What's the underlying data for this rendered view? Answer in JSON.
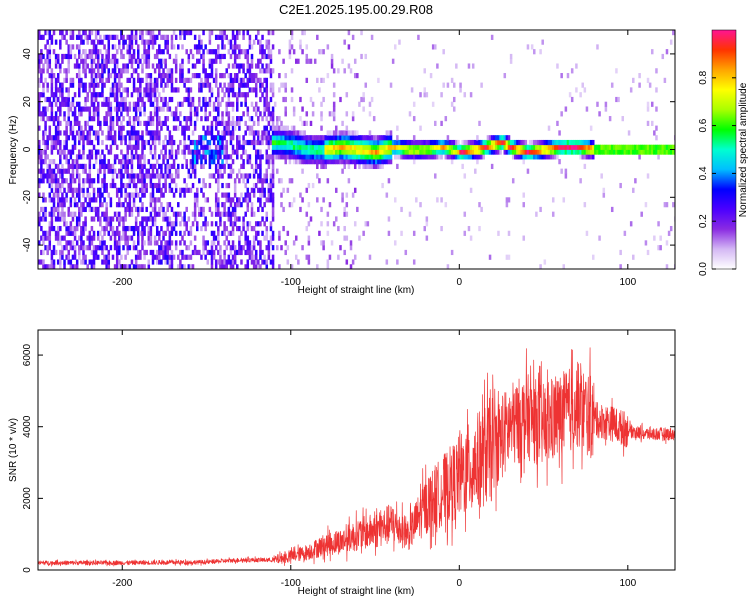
{
  "figure_title": "C2E1.2025.195.00.29.R08",
  "chart_data": [
    {
      "type": "heatmap",
      "xlabel": "Height of straight line (km)",
      "ylabel": "Frequency (Hz)",
      "xlim": [
        -250,
        128
      ],
      "ylim": [
        -50,
        50
      ],
      "xticks": [
        -200,
        -100,
        0,
        100
      ],
      "yticks": [
        -40,
        -20,
        0,
        20,
        40
      ],
      "colorbar": {
        "label": "Normalized spectral amplitude",
        "range": [
          0,
          1
        ],
        "ticks": [
          0.0,
          0.2,
          0.4,
          0.6,
          0.8
        ],
        "tick_labels": [
          "0.0",
          "0.2",
          "0.4",
          "0.6",
          "0.8"
        ],
        "colormap": [
          "#ffffff",
          "#d4b8f4",
          "#8a2be2",
          "#4b00ff",
          "#0000ff",
          "#00bfff",
          "#00ffd0",
          "#00ff00",
          "#aaff00",
          "#ffff00",
          "#ffa500",
          "#ff3300",
          "#ff1493"
        ]
      },
      "ridge": {
        "x": [
          -110,
          -100,
          -90,
          -80,
          -70,
          -60,
          -50,
          -40,
          -30,
          -20,
          -10,
          0,
          10,
          20,
          25,
          30,
          40,
          50,
          60,
          70,
          80,
          90,
          100,
          110,
          128
        ],
        "y": [
          3,
          2,
          0,
          0,
          1,
          0,
          -1,
          1,
          0,
          0,
          1,
          -1,
          0,
          2,
          3,
          1,
          -1,
          0,
          1,
          1,
          0,
          0,
          0,
          0,
          0
        ]
      },
      "grid": false
    },
    {
      "type": "line",
      "xlabel": "Height of straight line (km)",
      "ylabel": "SNR (10 * v/v)",
      "xlim": [
        -250,
        128
      ],
      "ylim": [
        0,
        6700
      ],
      "xticks": [
        -200,
        -100,
        0,
        100
      ],
      "yticks": [
        0,
        2000,
        4000,
        6000
      ],
      "series": [
        {
          "color": "#ee3333",
          "x": [
            -250,
            -200,
            -150,
            -130,
            -110,
            -100,
            -90,
            -80,
            -70,
            -60,
            -50,
            -40,
            -30,
            -20,
            -10,
            0,
            10,
            20,
            30,
            40,
            50,
            60,
            70,
            80,
            90,
            100,
            110,
            128
          ],
          "y": [
            200,
            200,
            220,
            280,
            280,
            380,
            500,
            700,
            800,
            1000,
            1100,
            1300,
            1000,
            1800,
            2200,
            2600,
            3000,
            3400,
            4000,
            4300,
            4000,
            4300,
            4600,
            4200,
            4100,
            3900,
            3800,
            3800
          ]
        }
      ],
      "grid": false
    }
  ]
}
